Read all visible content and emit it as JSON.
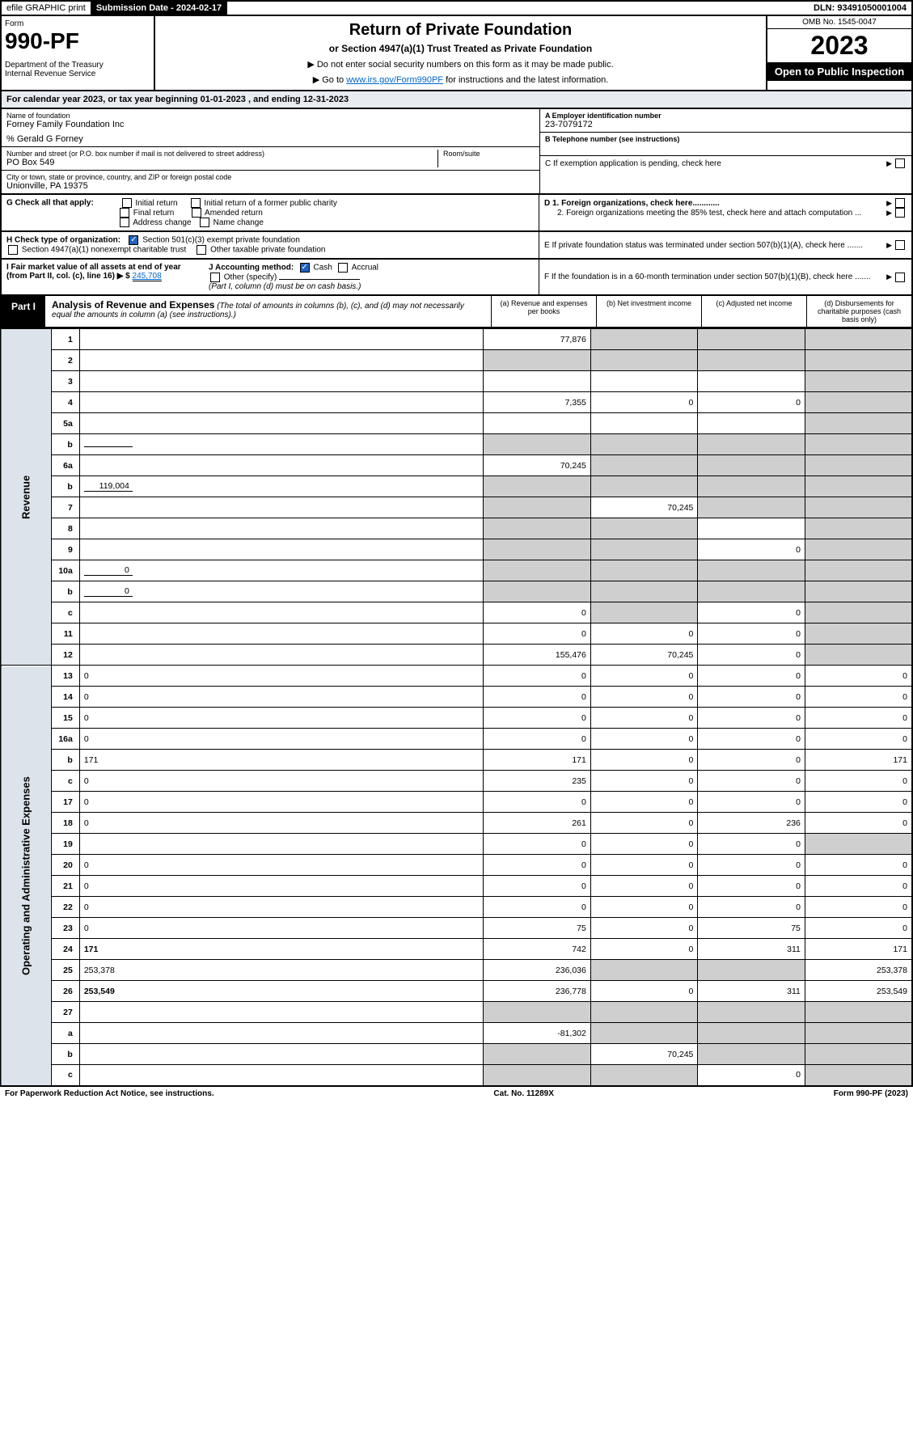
{
  "topbar": {
    "efile": "efile GRAPHIC print",
    "sub_label": "Submission Date - 2024-02-17",
    "dln": "DLN: 93491050001004"
  },
  "header": {
    "form": "Form",
    "form_no": "990-PF",
    "dept": "Department of the Treasury\nInternal Revenue Service",
    "title": "Return of Private Foundation",
    "subtitle": "or Section 4947(a)(1) Trust Treated as Private Foundation",
    "note1": "▶ Do not enter social security numbers on this form as it may be made public.",
    "note2": "▶ Go to ",
    "link": "www.irs.gov/Form990PF",
    "note2b": " for instructions and the latest information.",
    "omb": "OMB No. 1545-0047",
    "year": "2023",
    "inspect": "Open to Public Inspection"
  },
  "calyear": "For calendar year 2023, or tax year beginning 01-01-2023              , and ending 12-31-2023",
  "info": {
    "name_label": "Name of foundation",
    "name": "Forney Family Foundation Inc",
    "care_of": "% Gerald G Forney",
    "addr_label": "Number and street (or P.O. box number if mail is not delivered to street address)",
    "addr": "PO Box 549",
    "room_label": "Room/suite",
    "city_label": "City or town, state or province, country, and ZIP or foreign postal code",
    "city": "Unionville, PA  19375",
    "a_label": "A Employer identification number",
    "a_val": "23-7079172",
    "b_label": "B Telephone number (see instructions)",
    "c_label": "C If exemption application is pending, check here",
    "d1": "D 1. Foreign organizations, check here............",
    "d2": "2. Foreign organizations meeting the 85% test, check here and attach computation ...",
    "e": "E  If private foundation status was terminated under section 507(b)(1)(A), check here .......",
    "f": "F  If the foundation is in a 60-month termination under section 507(b)(1)(B), check here .......",
    "g": "G Check all that apply:",
    "g_opts": [
      "Initial return",
      "Final return",
      "Address change",
      "Initial return of a former public charity",
      "Amended return",
      "Name change"
    ],
    "h": "H Check type of organization:",
    "h1": "Section 501(c)(3) exempt private foundation",
    "h2": "Section 4947(a)(1) nonexempt charitable trust",
    "h3": "Other taxable private foundation",
    "i": "I Fair market value of all assets at end of year (from Part II, col. (c), line 16) ▶ $",
    "i_val": "245,708",
    "j": "J Accounting method:",
    "j_cash": "Cash",
    "j_accrual": "Accrual",
    "j_other": "Other (specify)",
    "j_note": "(Part I, column (d) must be on cash basis.)"
  },
  "part1": {
    "label": "Part I",
    "title": "Analysis of Revenue and Expenses",
    "title_note": "(The total of amounts in columns (b), (c), and (d) may not necessarily equal the amounts in column (a) (see instructions).)",
    "col_a": "(a)  Revenue and expenses per books",
    "col_b": "(b)  Net investment income",
    "col_c": "(c)  Adjusted net income",
    "col_d": "(d)  Disbursements for charitable purposes (cash basis only)"
  },
  "side": {
    "rev": "Revenue",
    "exp": "Operating and Administrative Expenses"
  },
  "rows": [
    {
      "n": "1",
      "d": "",
      "a": "77,876",
      "b": "",
      "c": "",
      "bg": "g",
      "cg": "g",
      "dg": "g"
    },
    {
      "n": "2",
      "d": "",
      "a": "",
      "b": "",
      "c": "",
      "ag": "g",
      "bg": "g",
      "cg": "g",
      "dg": "g"
    },
    {
      "n": "3",
      "d": "",
      "a": "",
      "b": "",
      "c": "",
      "dg": "g"
    },
    {
      "n": "4",
      "d": "",
      "a": "7,355",
      "b": "0",
      "c": "0",
      "dg": "g"
    },
    {
      "n": "5a",
      "d": "",
      "a": "",
      "b": "",
      "c": "",
      "dg": "g"
    },
    {
      "n": "b",
      "d": "",
      "a": "",
      "b": "",
      "c": "",
      "ag": "g",
      "bg": "g",
      "cg": "g",
      "dg": "g",
      "inline": ""
    },
    {
      "n": "6a",
      "d": "",
      "a": "70,245",
      "b": "",
      "c": "",
      "bg": "g",
      "cg": "g",
      "dg": "g"
    },
    {
      "n": "b",
      "d": "",
      "a": "",
      "b": "",
      "c": "",
      "ag": "g",
      "bg": "g",
      "cg": "g",
      "dg": "g",
      "inline": "119,004"
    },
    {
      "n": "7",
      "d": "",
      "a": "",
      "b": "70,245",
      "c": "",
      "ag": "g",
      "cg": "g",
      "dg": "g"
    },
    {
      "n": "8",
      "d": "",
      "a": "",
      "b": "",
      "c": "",
      "ag": "g",
      "bg": "g",
      "dg": "g"
    },
    {
      "n": "9",
      "d": "",
      "a": "",
      "b": "",
      "c": "0",
      "ag": "g",
      "bg": "g",
      "dg": "g"
    },
    {
      "n": "10a",
      "d": "",
      "a": "",
      "b": "",
      "c": "",
      "ag": "g",
      "bg": "g",
      "cg": "g",
      "dg": "g",
      "inline": "0"
    },
    {
      "n": "b",
      "d": "",
      "a": "",
      "b": "",
      "c": "",
      "ag": "g",
      "bg": "g",
      "cg": "g",
      "dg": "g",
      "inline": "0"
    },
    {
      "n": "c",
      "d": "",
      "a": "0",
      "b": "",
      "c": "0",
      "bg": "g",
      "dg": "g"
    },
    {
      "n": "11",
      "d": "",
      "a": "0",
      "b": "0",
      "c": "0",
      "dg": "g"
    },
    {
      "n": "12",
      "d": "",
      "a": "155,476",
      "b": "70,245",
      "c": "0",
      "dg": "g",
      "bold": true
    },
    {
      "n": "13",
      "d": "0",
      "a": "0",
      "b": "0",
      "c": "0"
    },
    {
      "n": "14",
      "d": "0",
      "a": "0",
      "b": "0",
      "c": "0"
    },
    {
      "n": "15",
      "d": "0",
      "a": "0",
      "b": "0",
      "c": "0"
    },
    {
      "n": "16a",
      "d": "0",
      "a": "0",
      "b": "0",
      "c": "0"
    },
    {
      "n": "b",
      "d": "171",
      "a": "171",
      "b": "0",
      "c": "0"
    },
    {
      "n": "c",
      "d": "0",
      "a": "235",
      "b": "0",
      "c": "0"
    },
    {
      "n": "17",
      "d": "0",
      "a": "0",
      "b": "0",
      "c": "0"
    },
    {
      "n": "18",
      "d": "0",
      "a": "261",
      "b": "0",
      "c": "236"
    },
    {
      "n": "19",
      "d": "",
      "a": "0",
      "b": "0",
      "c": "0",
      "dg": "g"
    },
    {
      "n": "20",
      "d": "0",
      "a": "0",
      "b": "0",
      "c": "0"
    },
    {
      "n": "21",
      "d": "0",
      "a": "0",
      "b": "0",
      "c": "0"
    },
    {
      "n": "22",
      "d": "0",
      "a": "0",
      "b": "0",
      "c": "0"
    },
    {
      "n": "23",
      "d": "0",
      "a": "75",
      "b": "0",
      "c": "75"
    },
    {
      "n": "24",
      "d": "171",
      "a": "742",
      "b": "0",
      "c": "311",
      "bold": true
    },
    {
      "n": "25",
      "d": "253,378",
      "a": "236,036",
      "b": "",
      "c": "",
      "bg": "g",
      "cg": "g"
    },
    {
      "n": "26",
      "d": "253,549",
      "a": "236,778",
      "b": "0",
      "c": "311",
      "bold": true
    },
    {
      "n": "27",
      "d": "",
      "a": "",
      "b": "",
      "c": "",
      "ag": "g",
      "bg": "g",
      "cg": "g",
      "dg": "g"
    },
    {
      "n": "a",
      "d": "",
      "a": "-81,302",
      "b": "",
      "c": "",
      "bg": "g",
      "cg": "g",
      "dg": "g",
      "bold": true
    },
    {
      "n": "b",
      "d": "",
      "a": "",
      "b": "70,245",
      "c": "",
      "ag": "g",
      "cg": "g",
      "dg": "g",
      "bold": true
    },
    {
      "n": "c",
      "d": "",
      "a": "",
      "b": "",
      "c": "0",
      "ag": "g",
      "bg": "g",
      "dg": "g",
      "bold": true
    }
  ],
  "footer": {
    "left": "For Paperwork Reduction Act Notice, see instructions.",
    "mid": "Cat. No. 11289X",
    "right": "Form 990-PF (2023)"
  },
  "colors": {
    "black": "#000000",
    "grey_bg": "#cfcfcf",
    "header_bg": "#e8ecf0",
    "side_bg": "#dde3ea",
    "link": "#0066cc",
    "check_blue": "#2060c0"
  }
}
